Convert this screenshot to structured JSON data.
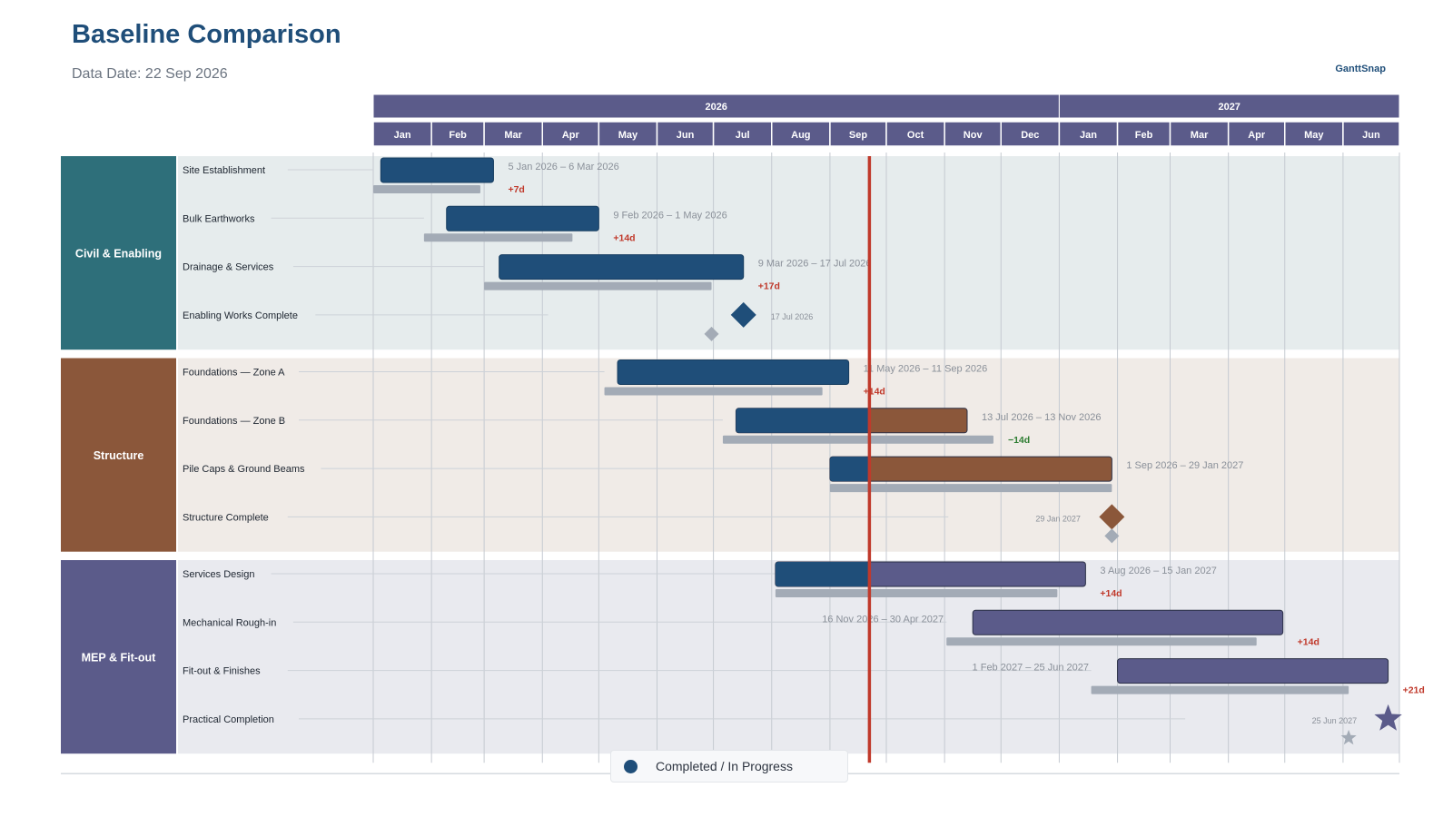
{
  "header": {
    "title": "Baseline Comparison",
    "subtitle": "Data Date: 22 Sep 2026",
    "brand": "GanttSnap"
  },
  "legend": {
    "label": "Completed / In Progress"
  },
  "colors": {
    "progress": "#1f4e79",
    "baseline": "#a3abb6",
    "data_date_line": "#c0392b",
    "late": "#c0392b",
    "early": "#2e7d32",
    "header_band": "#5b5b8a"
  },
  "chart_data": {
    "type": "gantt",
    "data_date": "2026-09-22",
    "axis": {
      "years": [
        {
          "label": "2026"
        },
        {
          "label": "2027"
        }
      ],
      "months": [
        "Jan",
        "Feb",
        "Mar",
        "Apr",
        "May",
        "Jun",
        "Jul",
        "Aug",
        "Sep",
        "Oct",
        "Nov",
        "Dec",
        "Jan",
        "Feb",
        "Mar",
        "Apr",
        "May",
        "Jun"
      ],
      "range": [
        "2026-01-01",
        "2027-06-30"
      ]
    },
    "groups": [
      {
        "name": "Civil & Enabling",
        "color": "#2e6f7a",
        "band": "#e6eced",
        "tasks": [
          {
            "name": "Site Establishment",
            "kind": "task",
            "start": "2026-01-05",
            "end": "2026-03-06",
            "baseline_start": "2026-01-01",
            "baseline_end": "2026-02-27",
            "date_label": "5 Jan 2026 – 6 Mar 2026",
            "variance": "+7d"
          },
          {
            "name": "Bulk Earthworks",
            "kind": "task",
            "start": "2026-02-09",
            "end": "2026-05-01",
            "baseline_start": "2026-01-28",
            "baseline_end": "2026-04-17",
            "date_label": "9 Feb 2026 – 1 May 2026",
            "variance": "+14d"
          },
          {
            "name": "Drainage & Services",
            "kind": "task",
            "start": "2026-03-09",
            "end": "2026-07-17",
            "baseline_start": "2026-03-01",
            "baseline_end": "2026-06-30",
            "date_label": "9 Mar 2026 – 17 Jul 2026",
            "variance": "+17d"
          },
          {
            "name": "Enabling Works Complete",
            "kind": "milestone",
            "date": "2026-07-17",
            "baseline": "2026-06-30",
            "date_label": "17 Jul 2026"
          }
        ]
      },
      {
        "name": "Structure",
        "color": "#8b573a",
        "band": "#f0ebe7",
        "tasks": [
          {
            "name": "Foundations — Zone A",
            "kind": "task",
            "start": "2026-05-11",
            "end": "2026-09-11",
            "baseline_start": "2026-05-04",
            "baseline_end": "2026-08-28",
            "date_label": "11 May 2026 – 11 Sep 2026",
            "variance": "+14d"
          },
          {
            "name": "Foundations — Zone B",
            "kind": "task",
            "start": "2026-07-13",
            "end": "2026-11-13",
            "baseline_start": "2026-07-06",
            "baseline_end": "2026-11-27",
            "date_label": "13 Jul 2026 – 13 Nov 2026",
            "variance": "−14d"
          },
          {
            "name": "Pile Caps & Ground Beams",
            "kind": "task",
            "start": "2026-09-01",
            "end": "2027-01-29",
            "baseline_start": "2026-09-01",
            "baseline_end": "2027-01-29",
            "date_label": "1 Sep 2026 – 29 Jan 2027",
            "variance": ""
          },
          {
            "name": "Structure Complete",
            "kind": "milestone",
            "date": "2027-01-29",
            "baseline": "2027-01-29",
            "date_label": "29 Jan 2027"
          }
        ]
      },
      {
        "name": "MEP & Fit-out",
        "color": "#5b5b8a",
        "band": "#e9eaef",
        "tasks": [
          {
            "name": "Services Design",
            "kind": "task",
            "start": "2026-08-03",
            "end": "2027-01-15",
            "baseline_start": "2026-08-03",
            "baseline_end": "2026-12-31",
            "date_label": "3 Aug 2026 – 15 Jan 2027",
            "variance": "+14d"
          },
          {
            "name": "Mechanical Rough-in",
            "kind": "task",
            "start": "2026-11-16",
            "end": "2027-04-30",
            "baseline_start": "2026-11-02",
            "baseline_end": "2027-04-16",
            "date_label": "16 Nov 2026 – 30 Apr 2027",
            "variance": "+14d"
          },
          {
            "name": "Fit-out & Finishes",
            "kind": "task",
            "start": "2027-02-01",
            "end": "2027-06-25",
            "baseline_start": "2027-01-18",
            "baseline_end": "2027-06-04",
            "date_label": "1 Feb 2027 – 25 Jun 2027",
            "variance": "+21d"
          },
          {
            "name": "Practical Completion",
            "kind": "finish",
            "date": "2027-06-25",
            "baseline": "2027-06-04",
            "date_label": "25 Jun 2027"
          }
        ]
      }
    ]
  }
}
